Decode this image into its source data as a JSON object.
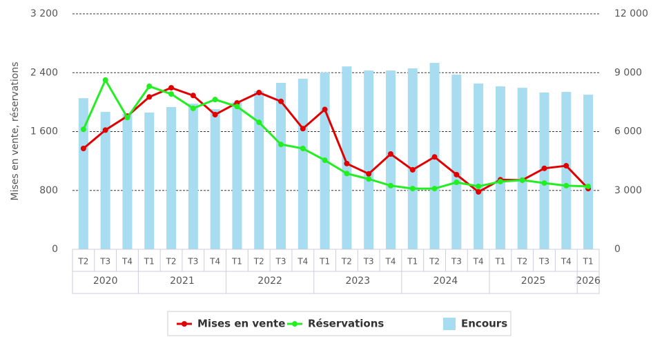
{
  "chart_data": {
    "type": "bar-line",
    "y_label": "Mises en vente, réservations",
    "categories": [
      "T2",
      "T3",
      "T4",
      "T1",
      "T2",
      "T3",
      "T4",
      "T1",
      "T2",
      "T3",
      "T4",
      "T1",
      "T2",
      "T3",
      "T4",
      "T1",
      "T2",
      "T3",
      "T4",
      "T1",
      "T2",
      "T3",
      "T4",
      "T1"
    ],
    "year_groups": [
      {
        "label": "2020",
        "span": 3
      },
      {
        "label": "2021",
        "span": 4
      },
      {
        "label": "2022",
        "span": 4
      },
      {
        "label": "2023",
        "span": 4
      },
      {
        "label": "2024",
        "span": 4
      },
      {
        "label": "2025",
        "span": 4
      },
      {
        "label": "2026",
        "span": 1
      }
    ],
    "series": [
      {
        "name": "Mises en vente",
        "color": "#e00000",
        "kind": "line",
        "axis": "y",
        "values": [
          1370,
          1620,
          1810,
          2070,
          2195,
          2090,
          1830,
          1990,
          2130,
          2010,
          1640,
          1900,
          1165,
          1025,
          1295,
          1080,
          1255,
          1015,
          780,
          945,
          940,
          1100,
          1135,
          825
        ]
      },
      {
        "name": "Réservations",
        "color": "#22ee22",
        "kind": "line",
        "axis": "y",
        "values": [
          1630,
          2300,
          1790,
          2215,
          2110,
          1915,
          2035,
          1940,
          1725,
          1425,
          1370,
          1210,
          1030,
          955,
          865,
          825,
          825,
          910,
          855,
          920,
          940,
          900,
          865,
          855
        ]
      },
      {
        "name": "Encours",
        "color": "#a8dcf0",
        "kind": "bar",
        "axis": "y2",
        "values": [
          7700,
          7000,
          6900,
          6970,
          7250,
          7420,
          7140,
          7500,
          8060,
          8480,
          8690,
          9010,
          9320,
          9110,
          9110,
          9220,
          9500,
          8900,
          8450,
          8300,
          8230,
          7990,
          8020,
          7880
        ]
      }
    ],
    "ylim": [
      0,
      3200
    ],
    "yticks": [
      0,
      800,
      {
        "value": 1600,
        "label": "1 600"
      },
      {
        "value": 2400,
        "label": "2 400"
      },
      {
        "value": 3200,
        "label": "3 200"
      }
    ],
    "y2lim": [
      0,
      12000
    ],
    "y2ticks": [
      0,
      {
        "value": 3000,
        "label": "3 000"
      },
      {
        "value": 6000,
        "label": "6 000"
      },
      {
        "value": 9000,
        "label": "9 000"
      },
      {
        "value": 12000,
        "label": "12 000"
      }
    ],
    "grid": true,
    "legend": "bottom"
  }
}
